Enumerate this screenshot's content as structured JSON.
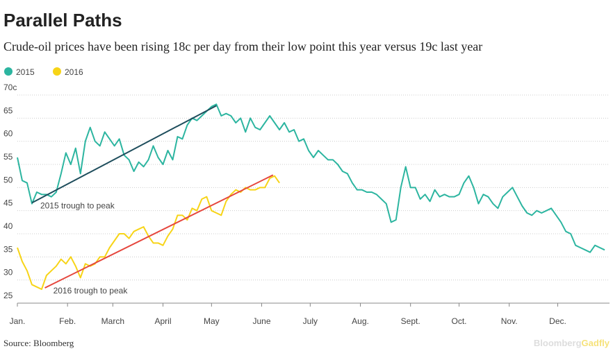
{
  "chart_data": {
    "type": "line",
    "title": "Parallel Paths",
    "subtitle": "Crude-oil prices have been rising 18c per day from their low point this year versus 19c last year",
    "source": "Source: Bloomberg",
    "logo": {
      "brand": "Bloomberg",
      "product": "Gadfly"
    },
    "xlim": [
      0,
      366
    ],
    "xticks": [
      {
        "value": 0,
        "label": "Jan."
      },
      {
        "value": 31,
        "label": "Feb."
      },
      {
        "value": 59,
        "label": "March"
      },
      {
        "value": 90,
        "label": "April"
      },
      {
        "value": 120,
        "label": "May"
      },
      {
        "value": 151,
        "label": "June"
      },
      {
        "value": 181,
        "label": "July"
      },
      {
        "value": 212,
        "label": "Aug."
      },
      {
        "value": 243,
        "label": "Sept."
      },
      {
        "value": 273,
        "label": "Oct."
      },
      {
        "value": 304,
        "label": "Nov."
      },
      {
        "value": 334,
        "label": "Dec."
      }
    ],
    "ylim": [
      25,
      70
    ],
    "yticks": [
      25,
      30,
      35,
      40,
      45,
      50,
      55,
      60,
      65,
      {
        "value": 70,
        "label": "70c"
      }
    ],
    "grid": true,
    "series": [
      {
        "name": "2015",
        "color": "#2cb5a0",
        "x": [
          0,
          3,
          6,
          9,
          12,
          15,
          18,
          21,
          24,
          27,
          30,
          33,
          36,
          39,
          42,
          45,
          48,
          51,
          54,
          57,
          60,
          63,
          66,
          69,
          72,
          75,
          78,
          81,
          84,
          87,
          90,
          93,
          96,
          99,
          102,
          105,
          108,
          111,
          114,
          117,
          120,
          123,
          126,
          129,
          132,
          135,
          138,
          141,
          144,
          147,
          150,
          153,
          156,
          159,
          162,
          165,
          168,
          171,
          174,
          177,
          180,
          183,
          186,
          189,
          192,
          195,
          198,
          201,
          204,
          207,
          210,
          213,
          216,
          219,
          222,
          225,
          228,
          231,
          234,
          237,
          240,
          243,
          246,
          249,
          252,
          255,
          258,
          261,
          264,
          267,
          270,
          273,
          276,
          279,
          282,
          285,
          288,
          291,
          294,
          297,
          300,
          303,
          306,
          309,
          312,
          315,
          318,
          321,
          324,
          327,
          330,
          333,
          336,
          339,
          342,
          345,
          348,
          351,
          354,
          357,
          360,
          363
        ],
        "values": [
          56.5,
          51.5,
          51,
          46.5,
          49,
          48.5,
          48.5,
          48,
          49,
          53,
          57.5,
          55,
          58.5,
          53,
          60,
          63,
          60,
          59,
          62,
          60.5,
          59,
          60.5,
          57,
          56,
          53.5,
          55.5,
          54.5,
          56,
          59,
          56.5,
          55,
          58,
          56,
          61,
          60.5,
          63.5,
          65,
          64.5,
          65.5,
          66.5,
          67.5,
          68,
          65.5,
          66,
          65.5,
          64,
          65,
          62,
          65,
          63,
          62.5,
          64,
          65.5,
          64,
          62.5,
          64,
          62,
          62.5,
          60,
          60.5,
          58,
          56.5,
          58,
          57,
          56,
          56,
          55,
          53.5,
          53,
          51,
          49.5,
          49.5,
          49,
          49,
          48.5,
          47.5,
          46.5,
          42.5,
          43,
          50,
          54.5,
          50,
          50,
          47.5,
          48.5,
          47,
          49.5,
          48,
          48.5,
          48,
          48,
          48.5,
          51,
          52.5,
          50,
          46.5,
          48.5,
          48,
          46.5,
          45.5,
          48,
          49,
          50,
          48,
          46,
          44.5,
          44,
          45,
          44.5,
          45,
          45.5,
          44,
          42.5,
          40.5,
          40,
          37.5,
          37,
          36.5,
          36,
          37.5,
          37,
          36.5
        ]
      },
      {
        "name": "2016",
        "color": "#f7d417",
        "x": [
          0,
          3,
          6,
          9,
          12,
          15,
          18,
          21,
          24,
          27,
          30,
          33,
          36,
          39,
          42,
          45,
          48,
          51,
          54,
          57,
          60,
          63,
          66,
          69,
          72,
          75,
          78,
          81,
          84,
          87,
          90,
          93,
          96,
          99,
          102,
          105,
          108,
          111,
          114,
          117,
          120,
          123,
          126,
          129,
          132,
          135,
          138,
          141,
          144,
          147,
          150,
          153,
          156,
          159,
          162
        ],
        "values": [
          37,
          34,
          32,
          29,
          28.5,
          28,
          31,
          32,
          33,
          34.5,
          33.5,
          35,
          33,
          30.5,
          33.5,
          33,
          33.5,
          35,
          35,
          37,
          38.5,
          40,
          40,
          39,
          40.5,
          41,
          41.5,
          39.5,
          38,
          38,
          37.5,
          39.5,
          41,
          44,
          44,
          43,
          45.5,
          45,
          47.5,
          48,
          45,
          44.5,
          44,
          47,
          48.5,
          49.5,
          49,
          50,
          49.5,
          49.5,
          50,
          50,
          52,
          52.5,
          51
        ]
      }
    ],
    "annotations": [
      {
        "text": "2015 trough to peak",
        "color": "#1e4d5c",
        "x": [
          9,
          123
        ],
        "y": [
          46.7,
          67.7
        ]
      },
      {
        "text": "2016 trough to peak",
        "color": "#e5463d",
        "x": [
          17,
          158
        ],
        "y": [
          28.3,
          52.7
        ]
      }
    ]
  }
}
